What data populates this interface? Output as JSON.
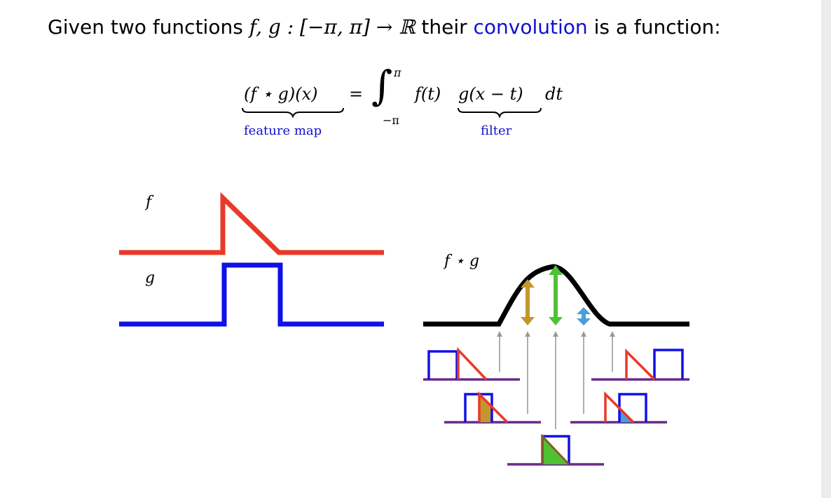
{
  "intro": {
    "before": "Given two functions ",
    "signature": "f, g : [−π, π] → ℝ",
    "middle": " their ",
    "keyword": "convolution",
    "after": " is a function:"
  },
  "formula": {
    "lhs": "(f ⋆ g)(x)",
    "equals": "=",
    "integral_sign": "∫",
    "upper_limit": "π",
    "lower_limit": "−π",
    "f_of_t": "f(t)",
    "g_shift": "g(x − t)",
    "dt": "dt",
    "lhs_label": "feature map",
    "filter_label": "filter"
  },
  "labels": {
    "f": "f",
    "g": "g",
    "conv": "f ⋆ g"
  },
  "colors": {
    "f_curve": "#e8392a",
    "g_curve": "#1010e8",
    "conv_curve": "#000000",
    "accent_text": "#1010d0",
    "overlap_gold": "#c4962e",
    "overlap_green": "#4ec232",
    "overlap_blue": "#4a9fd8",
    "baseline": "#6a2a8a",
    "pointer": "#9a9a9a"
  }
}
